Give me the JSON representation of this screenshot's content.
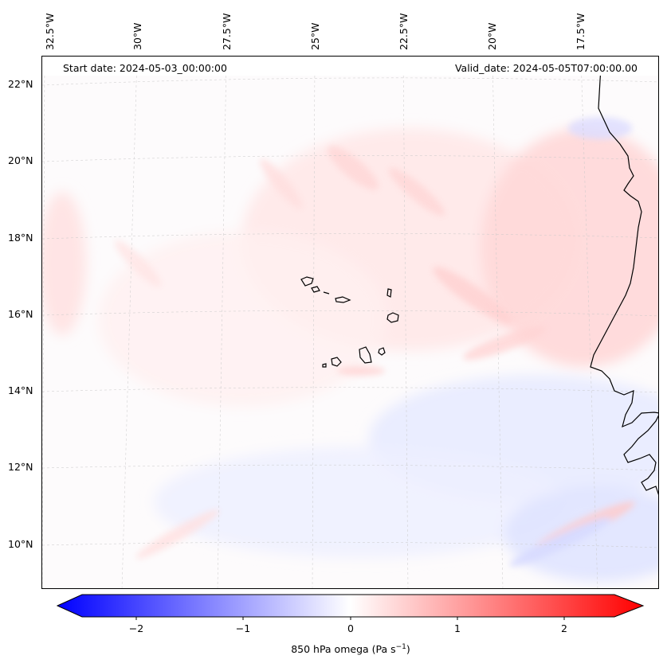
{
  "header": {
    "start_date": "Start date: 2024-05-03_00:00:00",
    "valid_date": "Valid_date: 2024-05-05T07:00:00.00"
  },
  "longitude_labels": [
    "32.5°W",
    "30°W",
    "27.5°W",
    "25°W",
    "22.5°W",
    "20°W",
    "17.5°W"
  ],
  "latitude_labels": [
    "22°N",
    "20°N",
    "18°N",
    "16°N",
    "14°N",
    "12°N",
    "10°N"
  ],
  "colorbar": {
    "ticks": [
      "−2",
      "−1",
      "0",
      "1",
      "2"
    ],
    "tick_values": [
      -2,
      -1,
      0,
      1,
      2
    ],
    "range": [
      -2.6,
      2.6
    ],
    "label_main": "850 hPa omega (Pa s",
    "label_exp": "−1",
    "label_close": ")",
    "colors": {
      "min": "#0000ff",
      "mid": "#ffffff",
      "max": "#ff0000"
    }
  },
  "map": {
    "features": [
      "graticule",
      "coastline",
      "cape-verde-islands",
      "west-africa-coast",
      "omega-field"
    ]
  }
}
